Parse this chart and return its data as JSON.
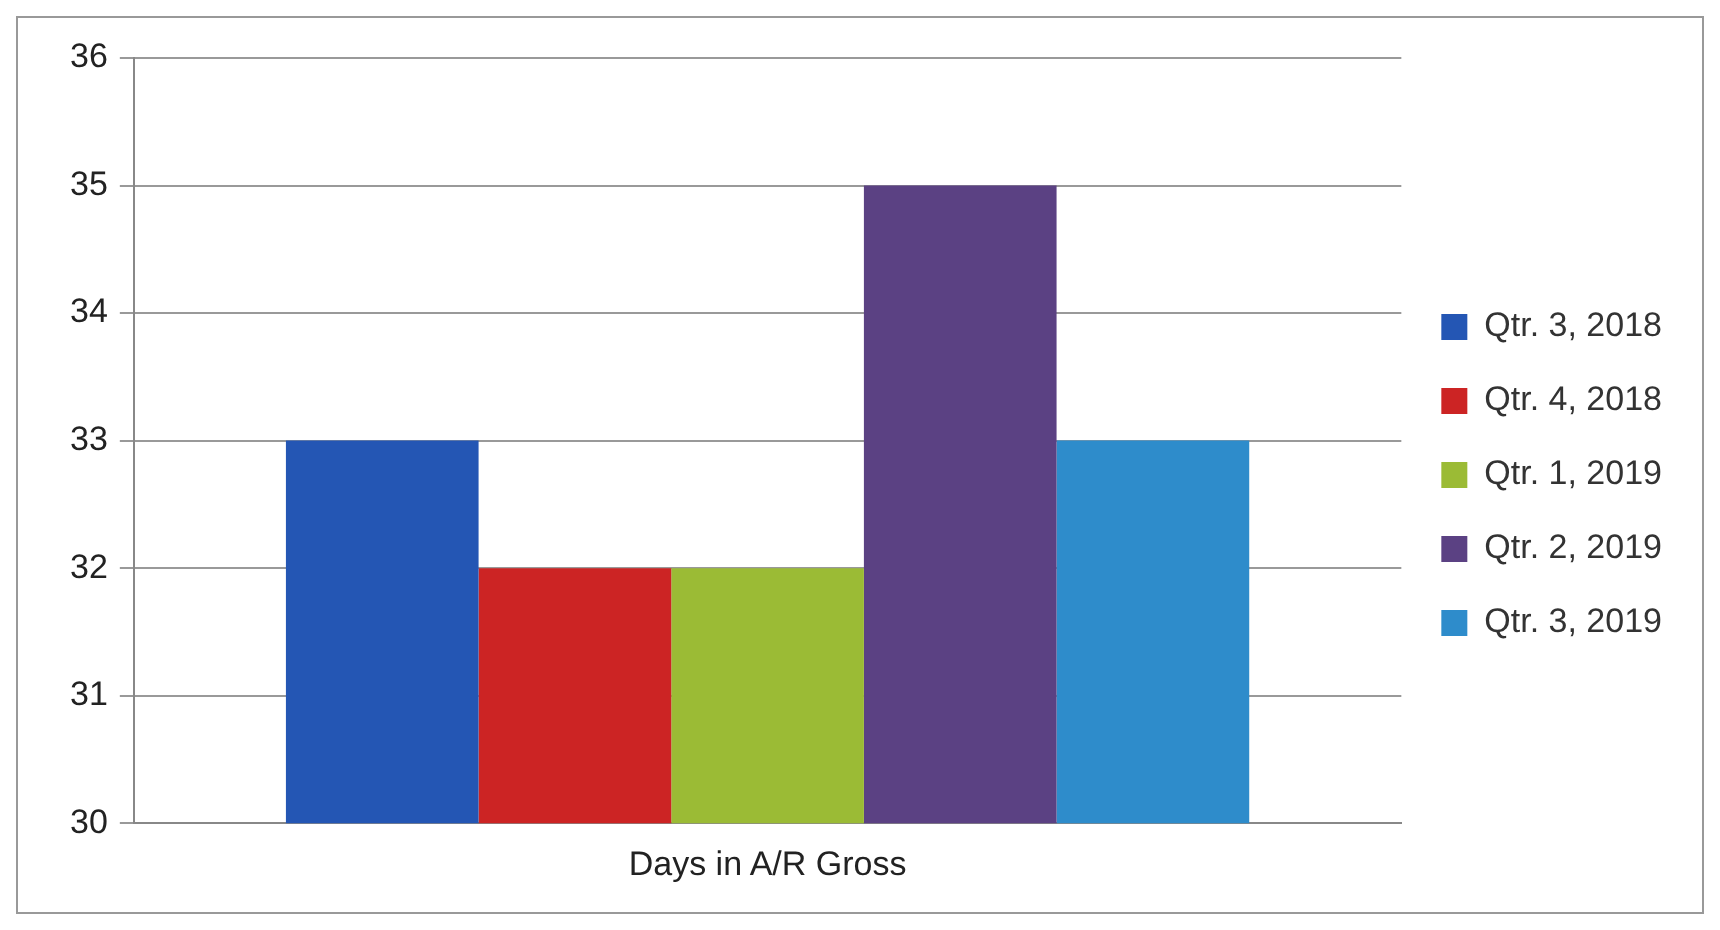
{
  "chart_data": {
    "type": "bar",
    "categories": [
      "Days in A/R Gross"
    ],
    "series": [
      {
        "name": "Qtr. 3, 2018",
        "color": "#2456b4",
        "values": [
          33
        ]
      },
      {
        "name": "Qtr. 4, 2018",
        "color": "#cc2424",
        "values": [
          32
        ]
      },
      {
        "name": "Qtr. 1, 2019",
        "color": "#9bbb35",
        "values": [
          32
        ]
      },
      {
        "name": "Qtr. 2, 2019",
        "color": "#5b4183",
        "values": [
          35
        ]
      },
      {
        "name": "Qtr. 3, 2019",
        "color": "#2e8ccb",
        "values": [
          33
        ]
      }
    ],
    "ylim": [
      30,
      36
    ],
    "yticks": [
      30,
      31,
      32,
      33,
      34,
      35,
      36
    ],
    "grid": "y",
    "legend": "right"
  }
}
